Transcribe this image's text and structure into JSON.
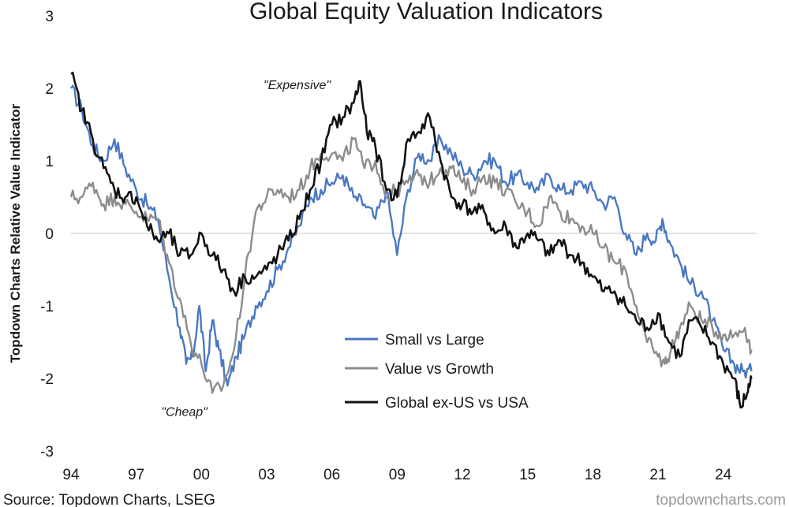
{
  "chart_data": {
    "type": "line",
    "title": "Global Equity Valuation Indicators",
    "ylabel": "Topdown Charts Relative Value Indicator",
    "xlabel": "",
    "ylim": [
      -3,
      3
    ],
    "xlim": [
      1994,
      2025.5
    ],
    "yticks": [
      3,
      2,
      1,
      0,
      -1,
      -2,
      -3
    ],
    "xticks": [
      {
        "label": "94",
        "year": 1994
      },
      {
        "label": "97",
        "year": 1997
      },
      {
        "label": "00",
        "year": 2000
      },
      {
        "label": "03",
        "year": 2003
      },
      {
        "label": "06",
        "year": 2006
      },
      {
        "label": "09",
        "year": 2009
      },
      {
        "label": "12",
        "year": 2012
      },
      {
        "label": "15",
        "year": 2015
      },
      {
        "label": "18",
        "year": 2018
      },
      {
        "label": "21",
        "year": 2021
      },
      {
        "label": "24",
        "year": 2024
      }
    ],
    "zero_line": true,
    "legend_position": "lower-center",
    "annotations": [
      {
        "text": "\"Expensive\"",
        "year": 2007.3,
        "value": 2.1
      },
      {
        "text": "\"Cheap\"",
        "year": 2000.3,
        "value": -2.3
      }
    ],
    "series": [
      {
        "name": "Small vs Large",
        "color": "#4a78c2",
        "x": [
          1994,
          1994.5,
          1995,
          1995.5,
          1996,
          1996.5,
          1997,
          1997.5,
          1998,
          1998.5,
          1999,
          1999.3,
          1999.6,
          1999.9,
          2000.2,
          2000.5,
          2000.8,
          2001.2,
          2001.6,
          2002,
          2002.5,
          2003,
          2003.5,
          2004,
          2004.5,
          2005,
          2005.5,
          2006,
          2006.5,
          2007,
          2007.5,
          2008,
          2008.5,
          2009,
          2009.5,
          2010,
          2010.5,
          2011,
          2011.5,
          2012,
          2012.5,
          2013,
          2013.5,
          2014,
          2014.5,
          2015,
          2015.5,
          2016,
          2016.5,
          2017,
          2017.5,
          2018,
          2018.5,
          2019,
          2019.5,
          2020,
          2020.5,
          2020.9,
          2021.2,
          2021.5,
          2022,
          2022.5,
          2023,
          2023.5,
          2024,
          2024.5,
          2024.9,
          2025.3
        ],
        "values": [
          2.0,
          1.7,
          1.2,
          1.0,
          1.3,
          0.9,
          0.6,
          0.4,
          0.2,
          -0.6,
          -1.3,
          -1.8,
          -1.7,
          -1.0,
          -1.9,
          -1.2,
          -1.6,
          -2.1,
          -1.7,
          -1.4,
          -1.0,
          -0.8,
          -0.5,
          -0.2,
          0.1,
          0.5,
          0.6,
          0.7,
          0.8,
          0.5,
          0.4,
          0.2,
          0.6,
          -0.3,
          0.6,
          1.1,
          1.0,
          1.3,
          1.1,
          0.9,
          0.8,
          1.0,
          1.0,
          0.7,
          0.8,
          0.7,
          0.6,
          0.8,
          0.6,
          0.6,
          0.7,
          0.6,
          0.4,
          0.5,
          0.0,
          -0.3,
          0.0,
          -0.1,
          0.2,
          -0.1,
          -0.4,
          -0.7,
          -0.8,
          -1.2,
          -1.6,
          -1.8,
          -1.9,
          -1.9
        ]
      },
      {
        "name": "Value vs Growth",
        "color": "#8c8c8c",
        "x": [
          1994,
          1994.5,
          1995,
          1995.5,
          1996,
          1996.5,
          1997,
          1997.5,
          1998,
          1998.5,
          1999,
          1999.5,
          2000,
          2000.5,
          2001,
          2001.5,
          2002,
          2002.5,
          2003,
          2003.5,
          2004,
          2004.5,
          2005,
          2005.5,
          2006,
          2006.5,
          2007,
          2007.5,
          2008,
          2008.5,
          2009,
          2009.5,
          2010,
          2010.5,
          2011,
          2011.5,
          2012,
          2012.5,
          2013,
          2013.5,
          2014,
          2014.5,
          2015,
          2015.5,
          2016,
          2016.5,
          2017,
          2017.5,
          2018,
          2018.5,
          2019,
          2019.5,
          2020,
          2020.5,
          2021,
          2021.3,
          2021.6,
          2022,
          2022.5,
          2023,
          2023.5,
          2024,
          2024.5,
          2025,
          2025.3
        ],
        "values": [
          0.5,
          0.5,
          0.7,
          0.4,
          0.5,
          0.4,
          0.3,
          0.2,
          0.2,
          -0.4,
          -0.9,
          -1.5,
          -1.8,
          -2.2,
          -2.1,
          -1.6,
          -0.6,
          0.3,
          0.5,
          0.6,
          0.5,
          0.6,
          0.9,
          1.1,
          1.1,
          1.0,
          1.3,
          0.9,
          1.0,
          0.5,
          0.6,
          0.7,
          0.8,
          0.7,
          0.9,
          0.9,
          0.7,
          0.6,
          0.8,
          0.7,
          0.6,
          0.4,
          0.3,
          0.1,
          0.5,
          0.3,
          0.2,
          0.1,
          0.0,
          -0.2,
          -0.4,
          -0.5,
          -1.0,
          -1.5,
          -1.7,
          -1.8,
          -1.6,
          -1.3,
          -1.0,
          -1.2,
          -1.3,
          -1.4,
          -1.4,
          -1.3,
          -1.6
        ]
      },
      {
        "name": "Global ex-US vs USA",
        "color": "#111111",
        "x": [
          1994,
          1994.5,
          1995,
          1995.5,
          1996,
          1996.5,
          1997,
          1997.5,
          1998,
          1998.5,
          1999,
          1999.5,
          2000,
          2000.5,
          2001,
          2001.5,
          2002,
          2002.5,
          2003,
          2003.5,
          2004,
          2004.5,
          2005,
          2005.5,
          2006,
          2006.5,
          2007,
          2007.3,
          2007.6,
          2008,
          2008.5,
          2009,
          2009.5,
          2010,
          2010.5,
          2011,
          2011.5,
          2012,
          2012.5,
          2013,
          2013.5,
          2014,
          2014.5,
          2015,
          2015.5,
          2016,
          2016.5,
          2017,
          2017.5,
          2018,
          2018.5,
          2019,
          2019.5,
          2020,
          2020.5,
          2021,
          2021.5,
          2022,
          2022.5,
          2023,
          2023.5,
          2024,
          2024.5,
          2024.8,
          2025.1,
          2025.3
        ],
        "values": [
          2.2,
          1.7,
          1.3,
          0.9,
          0.6,
          0.5,
          0.5,
          0.1,
          -0.1,
          0.0,
          -0.3,
          -0.3,
          0.0,
          -0.3,
          -0.5,
          -0.8,
          -0.6,
          -0.6,
          -0.5,
          -0.3,
          -0.1,
          0.2,
          0.6,
          1.0,
          1.5,
          1.6,
          1.8,
          2.1,
          1.4,
          1.2,
          0.6,
          0.5,
          1.3,
          1.4,
          1.6,
          1.0,
          0.5,
          0.4,
          0.3,
          0.3,
          0.0,
          0.1,
          -0.2,
          0.0,
          -0.1,
          -0.3,
          -0.1,
          -0.3,
          -0.4,
          -0.6,
          -0.8,
          -0.8,
          -1.0,
          -1.2,
          -1.3,
          -1.1,
          -1.5,
          -1.7,
          -1.2,
          -1.3,
          -1.5,
          -1.8,
          -2.0,
          -2.4,
          -2.2,
          -2.0
        ]
      }
    ]
  },
  "footer": {
    "source": "Source: Topdown Charts, LSEG",
    "watermark": "topdowncharts.com"
  }
}
